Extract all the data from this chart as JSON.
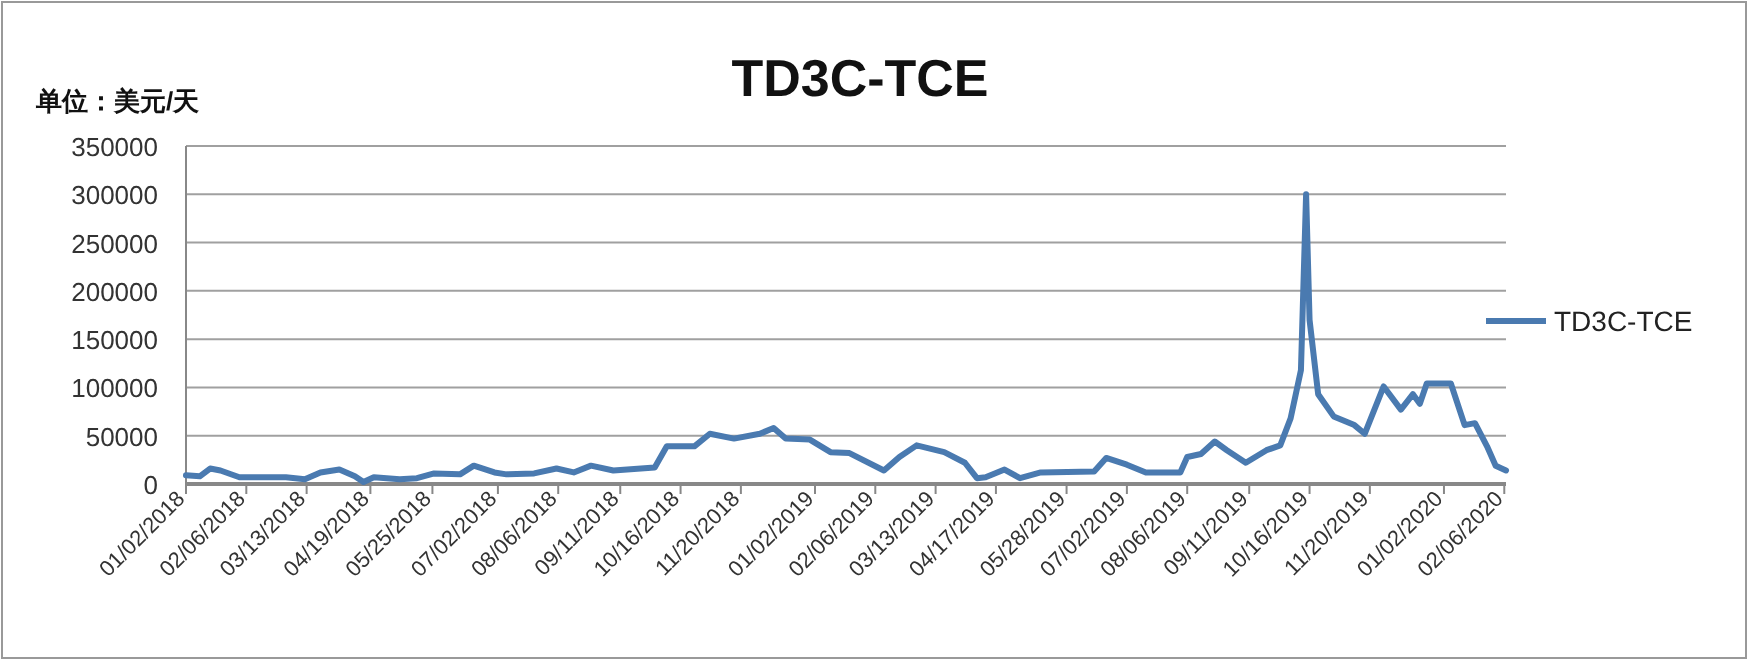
{
  "chart_data": {
    "type": "line",
    "title": "TD3C-TCE",
    "ylabel": "单位：美元/天",
    "x": [
      "2018-01-02",
      "2018-01-10",
      "2018-01-16",
      "2018-01-22",
      "2018-02-02",
      "2018-03-01",
      "2018-03-12",
      "2018-03-21",
      "2018-04-01",
      "2018-04-10",
      "2018-04-15",
      "2018-04-21",
      "2018-05-06",
      "2018-05-16",
      "2018-05-26",
      "2018-06-10",
      "2018-06-18",
      "2018-06-30",
      "2018-07-07",
      "2018-07-23",
      "2018-08-05",
      "2018-08-15",
      "2018-08-25",
      "2018-09-07",
      "2018-10-01",
      "2018-10-08",
      "2018-10-24",
      "2018-11-02",
      "2018-11-16",
      "2018-12-01",
      "2018-12-09",
      "2018-12-16",
      "2018-12-30",
      "2019-01-11",
      "2019-01-22",
      "2019-02-11",
      "2019-02-20",
      "2019-03-02",
      "2019-03-18",
      "2019-03-30",
      "2019-04-06",
      "2019-04-11",
      "2019-04-22",
      "2019-05-01",
      "2019-05-13",
      "2019-06-13",
      "2019-06-20",
      "2019-07-02",
      "2019-07-13",
      "2019-08-02",
      "2019-08-06",
      "2019-08-14",
      "2019-08-22",
      "2019-08-29",
      "2019-09-09",
      "2019-09-21",
      "2019-09-29",
      "2019-10-05",
      "2019-10-11",
      "2019-10-14",
      "2019-10-16",
      "2019-10-21",
      "2019-10-30",
      "2019-11-11",
      "2019-11-17",
      "2019-11-28",
      "2019-12-08",
      "2019-12-15",
      "2019-12-19",
      "2019-12-23",
      "2020-01-06",
      "2020-01-14",
      "2020-01-20",
      "2020-01-27",
      "2020-02-01",
      "2020-02-07"
    ],
    "series": [
      {
        "name": "TD3C-TCE",
        "color": "#4a7ab0",
        "values": [
          9000,
          8000,
          16000,
          14000,
          7000,
          7000,
          5000,
          12000,
          15000,
          8000,
          2000,
          7000,
          5000,
          6000,
          11000,
          10000,
          19000,
          12000,
          10000,
          11000,
          16000,
          12000,
          19000,
          14000,
          17000,
          39000,
          39000,
          52000,
          47000,
          52000,
          58000,
          47000,
          46000,
          33000,
          32000,
          14000,
          28000,
          40000,
          33000,
          22000,
          6000,
          7000,
          15000,
          6000,
          12000,
          13000,
          27000,
          20000,
          12000,
          12000,
          28000,
          31000,
          44000,
          35000,
          22000,
          35000,
          40000,
          68000,
          118000,
          300000,
          170000,
          93000,
          70000,
          61000,
          52000,
          101000,
          77000,
          93000,
          83000,
          104000,
          104000,
          61000,
          63000,
          39000,
          19000,
          14000
        ]
      }
    ],
    "xlim": [
      "2018-01-02",
      "2020-02-07"
    ],
    "xticks": [
      {
        "value": "2018-01-02",
        "label": "01/02/2018"
      },
      {
        "value": "2018-02-06",
        "label": "02/06/2018"
      },
      {
        "value": "2018-03-13",
        "label": "03/13/2018"
      },
      {
        "value": "2018-04-19",
        "label": "04/19/2018"
      },
      {
        "value": "2018-05-25",
        "label": "05/25/2018"
      },
      {
        "value": "2018-07-02",
        "label": "07/02/2018"
      },
      {
        "value": "2018-08-06",
        "label": "08/06/2018"
      },
      {
        "value": "2018-09-11",
        "label": "09/11/2018"
      },
      {
        "value": "2018-10-16",
        "label": "10/16/2018"
      },
      {
        "value": "2018-11-20",
        "label": "11/20/2018"
      },
      {
        "value": "2019-01-02",
        "label": "01/02/2019"
      },
      {
        "value": "2019-02-06",
        "label": "02/06/2019"
      },
      {
        "value": "2019-03-13",
        "label": "03/13/2019"
      },
      {
        "value": "2019-04-17",
        "label": "04/17/2019"
      },
      {
        "value": "2019-05-28",
        "label": "05/28/2019"
      },
      {
        "value": "2019-07-02",
        "label": "07/02/2019"
      },
      {
        "value": "2019-08-06",
        "label": "08/06/2019"
      },
      {
        "value": "2019-09-11",
        "label": "09/11/2019"
      },
      {
        "value": "2019-10-16",
        "label": "10/16/2019"
      },
      {
        "value": "2019-11-20",
        "label": "11/20/2019"
      },
      {
        "value": "2020-01-02",
        "label": "01/02/2020"
      },
      {
        "value": "2020-02-06",
        "label": "02/06/2020"
      }
    ],
    "ylim": [
      0,
      350000
    ],
    "yticks": [
      0,
      50000,
      100000,
      150000,
      200000,
      250000,
      300000,
      350000
    ],
    "grid": "y",
    "legend": "right"
  }
}
